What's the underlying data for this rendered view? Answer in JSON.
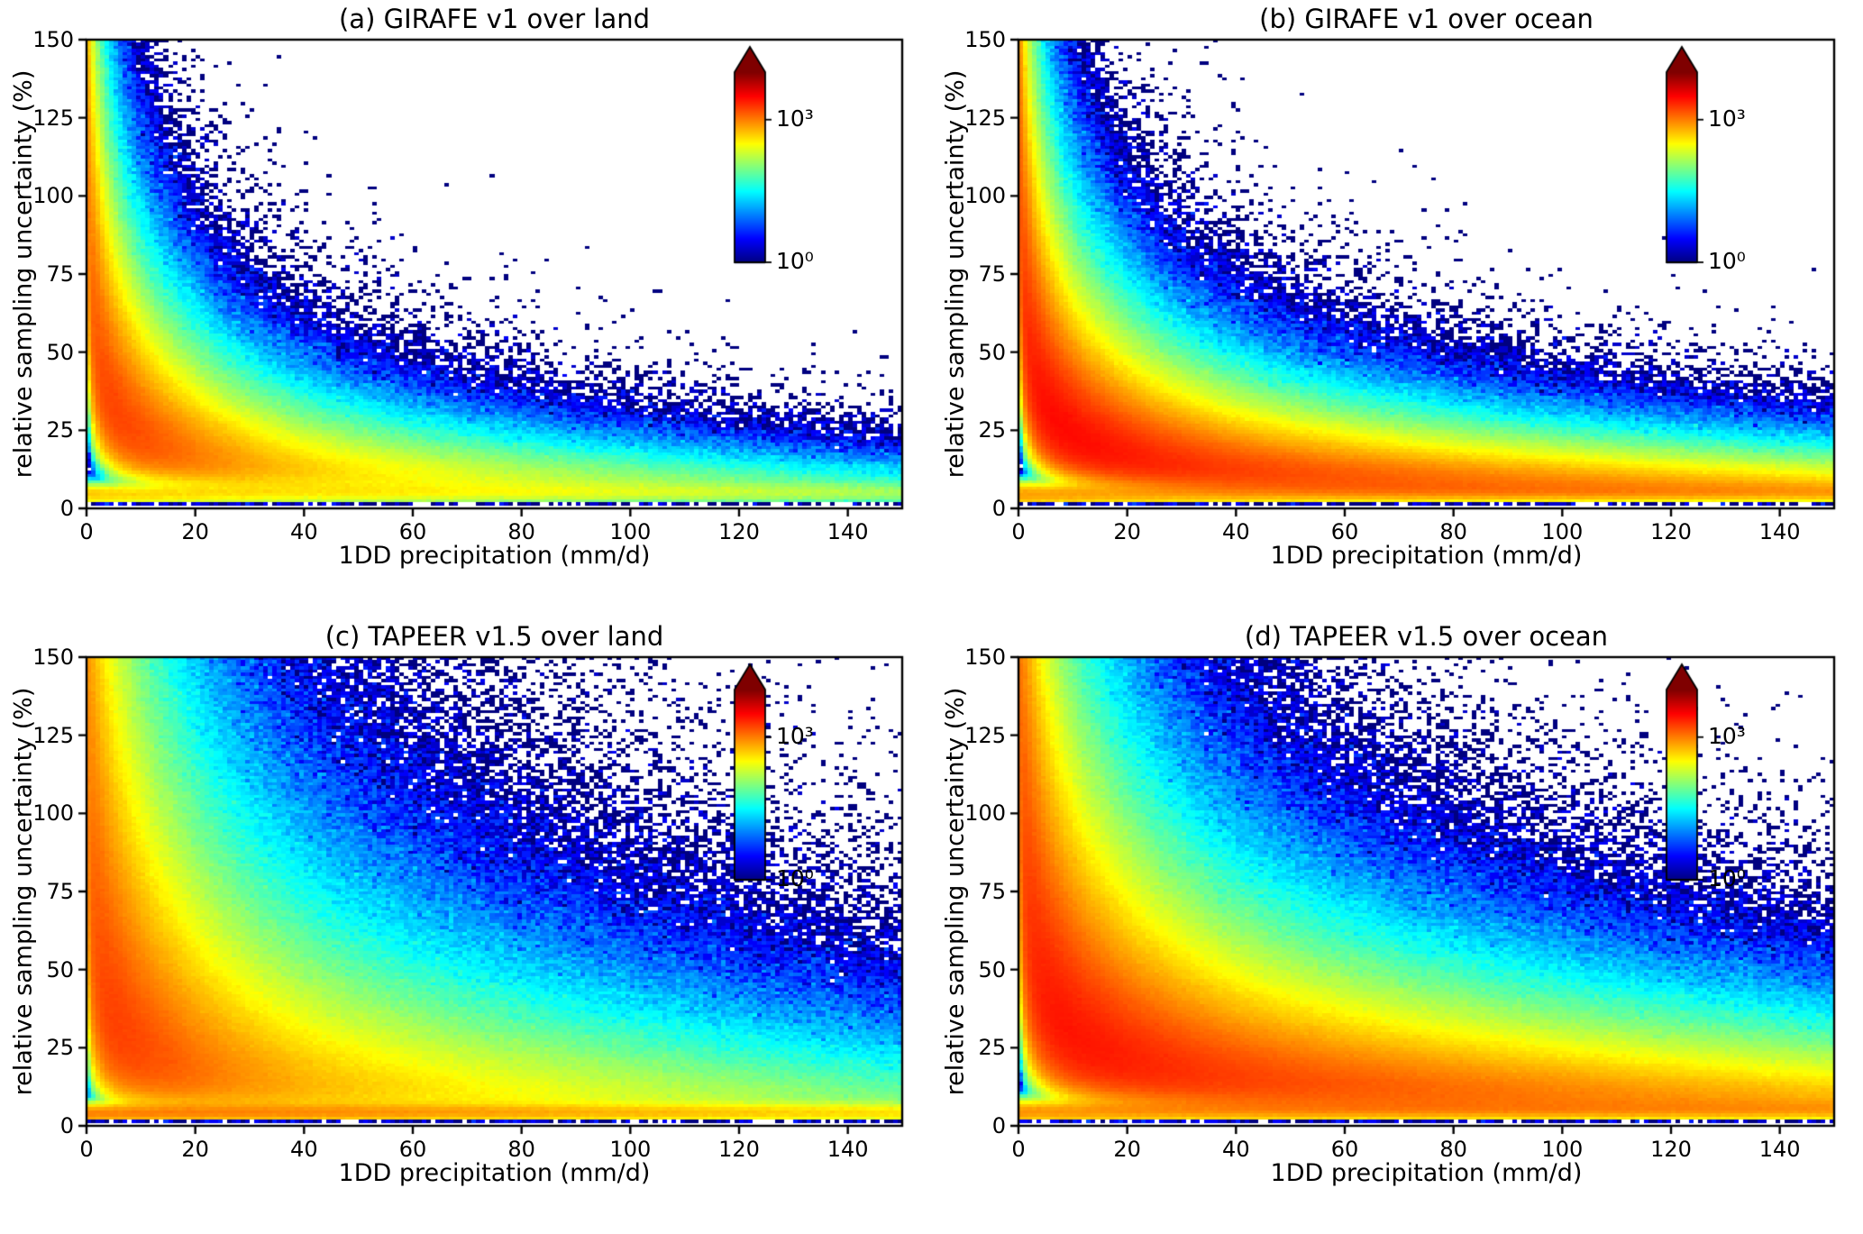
{
  "figure": {
    "background": "#ffffff",
    "text_color": "#000000",
    "colormap": "jet"
  },
  "chart_data": [
    {
      "type": "heatmap",
      "panel_label": "(a)",
      "title": "(a) GIRAFE v1 over land",
      "xlabel": "1DD precipitation (mm/d)",
      "ylabel": "relative sampling uncertainty (%)",
      "xlim": [
        0,
        150
      ],
      "ylim": [
        0,
        150
      ],
      "xticks": [
        0,
        20,
        40,
        60,
        80,
        100,
        120,
        140
      ],
      "yticks": [
        0,
        25,
        50,
        75,
        100,
        125,
        150
      ],
      "colorbar": {
        "scale": "log10",
        "vmin": 1,
        "vmax": 10000,
        "tick_labels": [
          "10³",
          "10⁰"
        ],
        "tick_fracs_from_top": [
          0.25,
          1.0
        ],
        "extend": "max"
      },
      "ridge_x": [
        1,
        5,
        10,
        20,
        40,
        80,
        120,
        150
      ],
      "ridge_y_approx": [
        95,
        42,
        30,
        21,
        15,
        11,
        9,
        8
      ],
      "density_model": {
        "seed": 11,
        "A1": 10000,
        "k": 95,
        "s": 0.5,
        "xs1": 11,
        "tail": 0.18,
        "xs2": 45,
        "band": {
          "A": 600,
          "y0": 4.5,
          "sy": 2.0,
          "xs": 90
        },
        "row": {
          "A": 2.5,
          "xs": 150
        }
      },
      "description": "2D histogram of counts (log color scale, jet colormap). Density peaks ~10^3.3 at precipitation < 15 mm/d and uncertainty 20-60 %; uncertainty envelope decays roughly as k/sqrt(P); thin dense band near 3-7 % uncertainty extends to 150 mm/d; sparse dark-blue speckle along the upper envelope."
    },
    {
      "type": "heatmap",
      "panel_label": "(b)",
      "title": "(b) GIRAFE v1 over ocean",
      "xlabel": "1DD precipitation (mm/d)",
      "ylabel": "relative sampling uncertainty (%)",
      "xlim": [
        0,
        150
      ],
      "ylim": [
        0,
        150
      ],
      "xticks": [
        0,
        20,
        40,
        60,
        80,
        100,
        120,
        140
      ],
      "yticks": [
        0,
        25,
        50,
        75,
        100,
        125,
        150
      ],
      "colorbar": {
        "scale": "log10",
        "vmin": 1,
        "vmax": 10000,
        "tick_labels": [
          "10³",
          "10⁰"
        ],
        "tick_fracs_from_top": [
          0.25,
          1.0
        ],
        "extend": "max"
      },
      "ridge_x": [
        1,
        5,
        10,
        20,
        40,
        80,
        120,
        150
      ],
      "ridge_y_approx": [
        95,
        42,
        30,
        21,
        15,
        11,
        9,
        8
      ],
      "density_model": {
        "seed": 22,
        "A1": 12000,
        "k": 95,
        "s": 0.5,
        "xs1": 13,
        "tail": 0.45,
        "xs2": 70,
        "band": {
          "A": 900,
          "y0": 4.5,
          "sy": 2.2,
          "xs": 200
        },
        "row": {
          "A": 2.5,
          "xs": 200
        }
      },
      "description": "Same as (a) but over ocean: denser overall; the low-uncertainty (5-15 %) yellow-green band stays bright all the way to 150 mm/d; red core at precipitation < 10 mm/d spanning 20-120 % uncertainty."
    },
    {
      "type": "heatmap",
      "panel_label": "(c)",
      "title": "(c) TAPEER v1.5 over land",
      "xlabel": "1DD precipitation (mm/d)",
      "ylabel": "relative sampling uncertainty (%)",
      "xlim": [
        0,
        150
      ],
      "ylim": [
        0,
        150
      ],
      "xticks": [
        0,
        20,
        40,
        60,
        80,
        100,
        120,
        140
      ],
      "yticks": [
        0,
        25,
        50,
        75,
        100,
        125,
        150
      ],
      "colorbar": {
        "scale": "log10",
        "vmin": 1,
        "vmax": 10000,
        "tick_labels": [
          "10³",
          "10⁰"
        ],
        "tick_fracs_from_top": [
          0.25,
          1.0
        ],
        "extend": "max"
      },
      "ridge_x": [
        1,
        5,
        10,
        20,
        40,
        80,
        120,
        150
      ],
      "ridge_y_approx": [
        135,
        60,
        43,
        30,
        21,
        15,
        12,
        11
      ],
      "density_model": {
        "seed": 33,
        "A1": 12000,
        "k": 135,
        "s": 0.75,
        "xs1": 11,
        "tail": 0.22,
        "xs2": 50,
        "band": {
          "A": 1200,
          "y0": 4.0,
          "sy": 1.8,
          "xs": 140
        },
        "row": {
          "A": 2.5,
          "xs": 200
        }
      },
      "description": "TAPEER over land: much broader scatter; blue speckle reaches 150 % uncertainty out to ~45 mm/d; bright yellow horizontal band at 2-7 % uncertainty across the full precipitation range; red core near 2-10 mm/d and 20-45 %."
    },
    {
      "type": "heatmap",
      "panel_label": "(d)",
      "title": "(d) TAPEER v1.5 over ocean",
      "xlabel": "1DD precipitation (mm/d)",
      "ylabel": "relative sampling uncertainty (%)",
      "xlim": [
        0,
        150
      ],
      "ylim": [
        0,
        150
      ],
      "xticks": [
        0,
        20,
        40,
        60,
        80,
        100,
        120,
        140
      ],
      "yticks": [
        0,
        25,
        50,
        75,
        100,
        125,
        150
      ],
      "colorbar": {
        "scale": "log10",
        "vmin": 1,
        "vmax": 10000,
        "tick_labels": [
          "10³",
          "10⁰"
        ],
        "tick_fracs_from_top": [
          0.25,
          1.0
        ],
        "extend": "max"
      },
      "ridge_x": [
        1,
        5,
        10,
        20,
        40,
        80,
        120,
        150
      ],
      "ridge_y_approx": [
        135,
        60,
        43,
        30,
        21,
        15,
        12,
        11
      ],
      "density_model": {
        "seed": 44,
        "A1": 13000,
        "k": 135,
        "s": 0.62,
        "xs1": 14,
        "tail": 0.5,
        "xs2": 75,
        "band": {
          "A": 1000,
          "y0": 4.5,
          "sy": 2.2,
          "xs": 220
        },
        "row": {
          "A": 2.5,
          "xs": 250
        }
      },
      "description": "TAPEER over ocean: broad smooth cloud; yellow-green region at 5-20 % uncertainty persists to 150 mm/d; envelope speckle up to ~90 % at the right edge; orange-red core at precipitation < 10 mm/d."
    }
  ]
}
